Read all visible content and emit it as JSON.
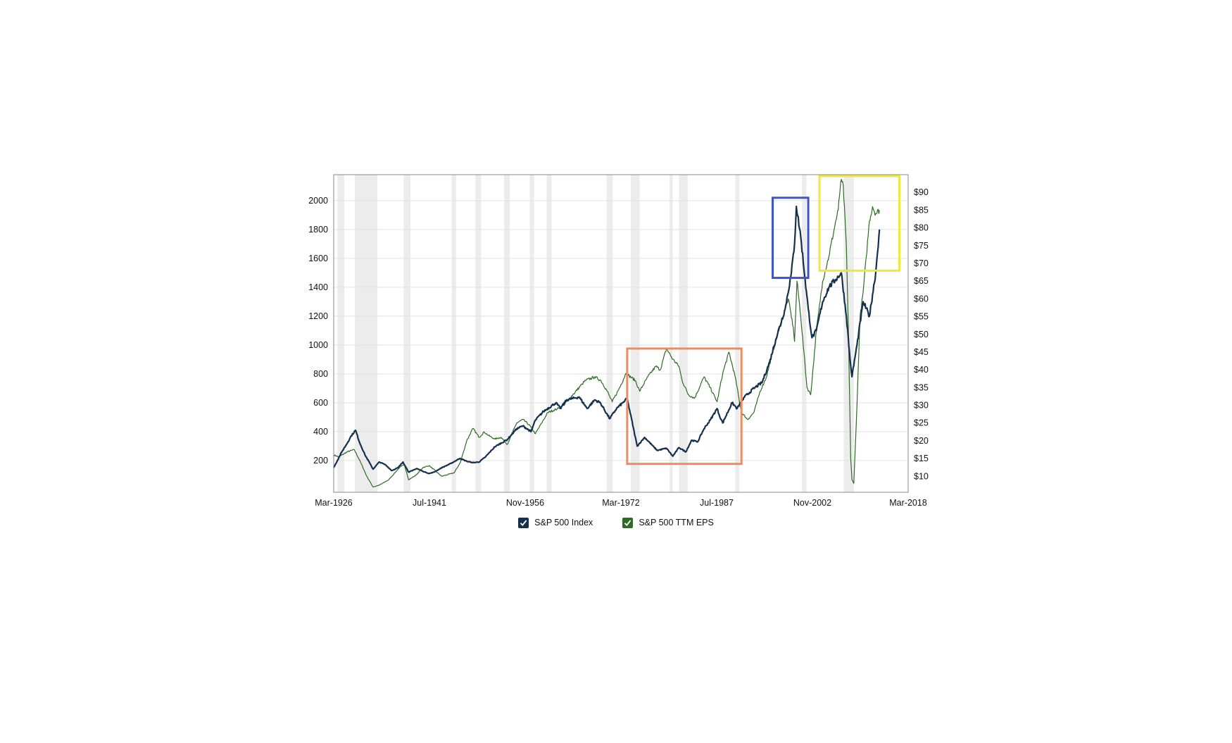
{
  "colors": {
    "index_line": "#15304f",
    "eps_line": "#2e6b25",
    "recession_band": "#ececec",
    "gridline": "#e2e2e2",
    "frame": "#8a8a8a",
    "box_orange": "#ef8b5e",
    "box_blue": "#3d55c8",
    "box_yellow": "#ece83c"
  },
  "legend": [
    {
      "label": "S&P 500 Index",
      "icon": "checkbox-checked-icon",
      "checked": true
    },
    {
      "label": "S&P 500 TTM EPS",
      "icon": "checkbox-checked-icon",
      "checked": true
    }
  ],
  "chart_data": {
    "type": "line",
    "title": "",
    "xlabel": "",
    "grid": true,
    "legend_position": "bottom",
    "x_ticks": [
      "Mar-1926",
      "Jul-1941",
      "Nov-1956",
      "Mar-1972",
      "Jul-1987",
      "Nov-2002",
      "Mar-2018"
    ],
    "x_range": [
      1926.2,
      2018.2
    ],
    "y_left": {
      "ticks": [
        "200",
        "400",
        "600",
        "800",
        "1000",
        "1200",
        "1400",
        "1600",
        "1800",
        "2000"
      ],
      "range": [
        -20,
        2180
      ]
    },
    "y_right": {
      "ticks": [
        "$10",
        "$15",
        "$20",
        "$25",
        "$30",
        "$35",
        "$40",
        "$45",
        "$50",
        "$55",
        "$60",
        "$65",
        "$70",
        "$75",
        "$80",
        "$85",
        "$90"
      ],
      "range": [
        5.5,
        95
      ]
    },
    "recession_periods": [
      [
        1926.8,
        1927.9
      ],
      [
        1929.6,
        1933.2
      ],
      [
        1937.4,
        1938.5
      ],
      [
        1945.1,
        1945.8
      ],
      [
        1948.9,
        1949.8
      ],
      [
        1953.5,
        1954.4
      ],
      [
        1957.6,
        1958.3
      ],
      [
        1960.3,
        1961.1
      ],
      [
        1969.9,
        1970.9
      ],
      [
        1973.8,
        1975.2
      ],
      [
        1980.0,
        1980.5
      ],
      [
        1981.5,
        1982.9
      ],
      [
        1990.5,
        1991.2
      ],
      [
        2001.2,
        2001.9
      ],
      [
        2007.9,
        2009.5
      ]
    ],
    "series": [
      {
        "name": "S&P 500 Index",
        "axis": "left",
        "x": [
          1926.2,
          1927.5,
          1928.5,
          1929.0,
          1929.7,
          1930.3,
          1931.2,
          1932.0,
          1932.5,
          1933.5,
          1934.5,
          1935.5,
          1936.5,
          1937.3,
          1938.2,
          1938.8,
          1939.5,
          1940.5,
          1941.5,
          1942.3,
          1943.5,
          1945.0,
          1946.4,
          1947.5,
          1948.5,
          1949.5,
          1950.5,
          1952.0,
          1954.0,
          1955.5,
          1956.5,
          1957.8,
          1958.5,
          1959.8,
          1961.8,
          1962.5,
          1963.5,
          1965.5,
          1966.8,
          1968.0,
          1968.9,
          1970.4,
          1971.5,
          1972.5,
          1973.2,
          1974.8,
          1976.0,
          1978.0,
          1979.5,
          1980.5,
          1981.5,
          1982.6,
          1983.5,
          1984.5,
          1985.5,
          1986.5,
          1987.6,
          1987.9,
          1988.5,
          1990.0,
          1990.8,
          1992.0,
          1993.5,
          1994.8,
          1996.0,
          1997.0,
          1998.5,
          1999.5,
          2000.0,
          2000.3,
          2001.0,
          2001.7,
          2002.2,
          2002.8,
          2003.5,
          2004.5,
          2005.5,
          2006.5,
          2007.5,
          2008.3,
          2008.9,
          2009.2,
          2010.0,
          2011.0,
          2012.0,
          2013.0,
          2013.6
        ],
        "y": [
          150,
          260,
          330,
          370,
          410,
          330,
          240,
          180,
          140,
          190,
          170,
          130,
          150,
          190,
          120,
          130,
          145,
          125,
          110,
          120,
          150,
          180,
          215,
          195,
          185,
          190,
          225,
          295,
          345,
          420,
          440,
          400,
          480,
          540,
          600,
          560,
          620,
          640,
          560,
          620,
          600,
          490,
          560,
          600,
          630,
          300,
          360,
          270,
          285,
          230,
          290,
          260,
          340,
          330,
          420,
          480,
          560,
          520,
          460,
          600,
          560,
          640,
          700,
          740,
          880,
          1040,
          1250,
          1500,
          1700,
          1960,
          1750,
          1450,
          1250,
          1050,
          1100,
          1300,
          1400,
          1450,
          1500,
          1200,
          900,
          780,
          1000,
          1300,
          1200,
          1500,
          1800
        ]
      },
      {
        "name": "S&P 500 TTM EPS",
        "axis": "right",
        "x": [
          1926.2,
          1927.0,
          1928.5,
          1929.5,
          1930.5,
          1931.5,
          1932.5,
          1933.5,
          1935.0,
          1936.5,
          1937.5,
          1938.2,
          1939.5,
          1940.5,
          1941.5,
          1942.5,
          1943.5,
          1944.5,
          1945.5,
          1946.5,
          1947.5,
          1948.5,
          1949.5,
          1950.3,
          1951.0,
          1952.0,
          1953.0,
          1954.0,
          1955.5,
          1956.5,
          1957.5,
          1958.5,
          1959.5,
          1960.5,
          1962.0,
          1963.0,
          1964.5,
          1966.0,
          1966.5,
          1968.0,
          1969.0,
          1970.0,
          1970.8,
          1972.0,
          1973.0,
          1974.5,
          1975.2,
          1976.5,
          1977.8,
          1978.5,
          1979.5,
          1980.5,
          1981.5,
          1982.0,
          1983.0,
          1984.0,
          1985.5,
          1986.5,
          1987.6,
          1988.5,
          1989.5,
          1990.5,
          1991.5,
          1992.5,
          1993.5,
          1994.5,
          1995.5,
          1996.5,
          1997.5,
          1998.5,
          1999.0,
          1999.8,
          2000.0,
          2000.4,
          2001.0,
          2001.5,
          2002.0,
          2002.6,
          2003.5,
          2004.5,
          2005.5,
          2006.5,
          2007.0,
          2007.4,
          2007.8,
          2008.3,
          2008.7,
          2009.0,
          2009.2,
          2009.5,
          2010.0,
          2010.5,
          2011.0,
          2011.5,
          2012.0,
          2012.5,
          2013.0,
          2013.6
        ],
        "y": [
          16,
          15.5,
          17,
          17.5,
          14,
          10,
          7,
          7.5,
          9,
          12,
          13.5,
          9,
          10.5,
          12.5,
          13,
          11.5,
          10,
          10.5,
          11,
          14,
          20,
          23.5,
          21,
          22.5,
          21.5,
          20.5,
          21,
          19,
          25,
          26,
          24.5,
          22,
          25,
          28,
          29,
          30,
          33,
          36,
          37,
          38,
          37,
          34,
          31,
          35,
          39,
          37,
          34,
          38,
          41,
          40,
          46,
          43,
          41,
          37,
          33,
          32,
          38,
          35,
          31,
          39,
          45,
          38,
          28,
          26,
          28,
          34,
          38,
          45,
          51,
          57,
          60,
          52,
          48,
          65,
          55,
          45,
          35,
          33,
          51,
          65,
          72,
          81,
          85,
          93,
          92,
          75,
          45,
          15,
          9,
          8,
          30,
          55,
          62,
          72,
          82,
          86,
          84,
          85
        ]
      }
    ],
    "annotation_boxes": [
      {
        "color": "orange",
        "x0": 1973.2,
        "x1": 1991.5,
        "y0": 13.5,
        "y1": 46
      },
      {
        "color": "blue",
        "x0": 1996.5,
        "x1": 2002.2,
        "y0": 1465,
        "y1": 2020
      },
      {
        "color": "yellow",
        "x0": 2004.0,
        "x1": 2016.8,
        "y0": 1515,
        "y1": 2170
      }
    ]
  }
}
